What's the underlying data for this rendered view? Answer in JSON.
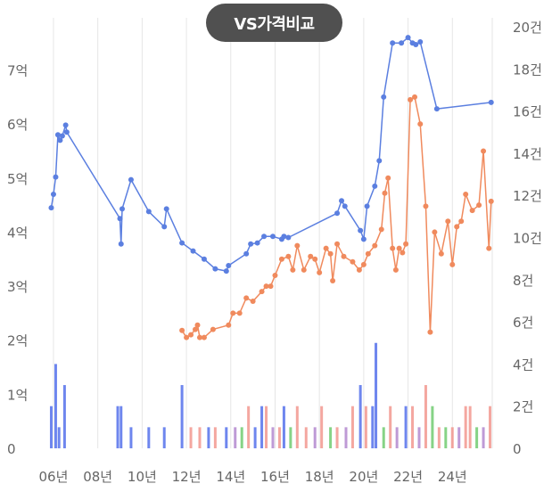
{
  "chart_data": {
    "type": "line",
    "title_button": "VS가격비교",
    "x_ticks": [
      "06년",
      "08년",
      "10년",
      "12년",
      "14년",
      "16년",
      "18년",
      "20년",
      "22년",
      "24년"
    ],
    "y_left_ticks": [
      "0",
      "1억",
      "2억",
      "3억",
      "4억",
      "5억",
      "6억",
      "7억"
    ],
    "y_left_range": [
      0,
      7.8
    ],
    "y_right_ticks": [
      "0",
      "2건",
      "4건",
      "6건",
      "8건",
      "10건",
      "12건",
      "14건",
      "16건",
      "18건",
      "20건"
    ],
    "y_right_range": [
      0,
      20
    ],
    "x_range": [
      2005.8,
      2025.8
    ],
    "grid": "vertical",
    "colors": {
      "blue_line": "#5b7fe0",
      "orange_line": "#f08a5d",
      "blue_bar": "#3d5ee8",
      "pink_bar": "#f08a80",
      "green_bar": "#5ec45e",
      "purple_bar": "#a878c8",
      "grid": "#e6e6e6",
      "tick_text": "#666666",
      "title_bg": "#505050"
    },
    "series": [
      {
        "color_key": "blue_line",
        "points": [
          [
            2005.9,
            4.45
          ],
          [
            2006.0,
            4.7
          ],
          [
            2006.1,
            5.02
          ],
          [
            2006.2,
            5.8
          ],
          [
            2006.3,
            5.7
          ],
          [
            2006.4,
            5.78
          ],
          [
            2006.55,
            5.98
          ],
          [
            2006.6,
            5.85
          ],
          [
            2009.0,
            4.25
          ],
          [
            2009.05,
            3.78
          ],
          [
            2009.1,
            4.43
          ],
          [
            2009.5,
            4.97
          ],
          [
            2010.3,
            4.38
          ],
          [
            2011.0,
            4.1
          ],
          [
            2011.1,
            4.43
          ],
          [
            2011.8,
            3.8
          ],
          [
            2012.3,
            3.65
          ],
          [
            2012.8,
            3.5
          ],
          [
            2013.3,
            3.32
          ],
          [
            2013.8,
            3.28
          ],
          [
            2013.9,
            3.38
          ],
          [
            2014.7,
            3.6
          ],
          [
            2014.9,
            3.78
          ],
          [
            2015.2,
            3.8
          ],
          [
            2015.5,
            3.92
          ],
          [
            2015.9,
            3.92
          ],
          [
            2016.3,
            3.87
          ],
          [
            2016.4,
            3.92
          ],
          [
            2016.6,
            3.9
          ],
          [
            2018.8,
            4.35
          ],
          [
            2019.0,
            4.58
          ],
          [
            2019.15,
            4.48
          ],
          [
            2019.85,
            4.03
          ],
          [
            2020.0,
            3.87
          ],
          [
            2020.15,
            4.48
          ],
          [
            2020.5,
            4.85
          ],
          [
            2020.7,
            5.32
          ],
          [
            2020.9,
            6.5
          ],
          [
            2021.3,
            7.5
          ],
          [
            2021.7,
            7.5
          ],
          [
            2022.0,
            7.6
          ],
          [
            2022.2,
            7.5
          ],
          [
            2022.35,
            7.47
          ],
          [
            2022.55,
            7.52
          ],
          [
            2023.3,
            6.28
          ],
          [
            2025.75,
            6.4
          ]
        ]
      },
      {
        "color_key": "orange_line",
        "points": [
          [
            2011.8,
            2.18
          ],
          [
            2012.0,
            2.05
          ],
          [
            2012.2,
            2.1
          ],
          [
            2012.4,
            2.2
          ],
          [
            2012.5,
            2.28
          ],
          [
            2012.6,
            2.05
          ],
          [
            2012.8,
            2.05
          ],
          [
            2013.2,
            2.2
          ],
          [
            2013.9,
            2.28
          ],
          [
            2014.1,
            2.5
          ],
          [
            2014.4,
            2.5
          ],
          [
            2014.7,
            2.78
          ],
          [
            2015.0,
            2.72
          ],
          [
            2015.4,
            2.9
          ],
          [
            2015.6,
            3.0
          ],
          [
            2015.8,
            3.0
          ],
          [
            2016.0,
            3.2
          ],
          [
            2016.3,
            3.5
          ],
          [
            2016.6,
            3.55
          ],
          [
            2016.8,
            3.3
          ],
          [
            2017.0,
            3.75
          ],
          [
            2017.3,
            3.3
          ],
          [
            2017.6,
            3.55
          ],
          [
            2017.8,
            3.5
          ],
          [
            2018.0,
            3.25
          ],
          [
            2018.3,
            3.7
          ],
          [
            2018.5,
            3.6
          ],
          [
            2018.6,
            3.1
          ],
          [
            2018.8,
            3.78
          ],
          [
            2019.1,
            3.55
          ],
          [
            2019.5,
            3.45
          ],
          [
            2019.8,
            3.3
          ],
          [
            2020.0,
            3.4
          ],
          [
            2020.2,
            3.6
          ],
          [
            2020.5,
            3.75
          ],
          [
            2020.8,
            4.05
          ],
          [
            2020.95,
            4.72
          ],
          [
            2021.1,
            5.0
          ],
          [
            2021.3,
            3.7
          ],
          [
            2021.45,
            3.3
          ],
          [
            2021.6,
            3.7
          ],
          [
            2021.75,
            3.62
          ],
          [
            2021.9,
            3.78
          ],
          [
            2022.1,
            6.45
          ],
          [
            2022.3,
            6.5
          ],
          [
            2022.55,
            6.0
          ],
          [
            2022.8,
            4.48
          ],
          [
            2023.0,
            2.15
          ],
          [
            2023.2,
            4.0
          ],
          [
            2023.5,
            3.6
          ],
          [
            2023.8,
            4.2
          ],
          [
            2024.0,
            3.4
          ],
          [
            2024.2,
            4.1
          ],
          [
            2024.4,
            4.2
          ],
          [
            2024.6,
            4.7
          ],
          [
            2024.9,
            4.4
          ],
          [
            2025.2,
            4.5
          ],
          [
            2025.4,
            5.5
          ],
          [
            2025.65,
            3.7
          ],
          [
            2025.75,
            4.57
          ]
        ]
      }
    ],
    "volume_bars": [
      {
        "x": 2005.9,
        "count": 2,
        "color_key": "blue_bar"
      },
      {
        "x": 2006.1,
        "count": 4,
        "color_key": "blue_bar"
      },
      {
        "x": 2006.25,
        "count": 1,
        "color_key": "blue_bar"
      },
      {
        "x": 2006.5,
        "count": 3,
        "color_key": "blue_bar"
      },
      {
        "x": 2008.9,
        "count": 2,
        "color_key": "blue_bar"
      },
      {
        "x": 2009.05,
        "count": 2,
        "color_key": "blue_bar"
      },
      {
        "x": 2009.5,
        "count": 1,
        "color_key": "blue_bar"
      },
      {
        "x": 2010.3,
        "count": 1,
        "color_key": "blue_bar"
      },
      {
        "x": 2011.0,
        "count": 1,
        "color_key": "blue_bar"
      },
      {
        "x": 2011.8,
        "count": 3,
        "color_key": "blue_bar"
      },
      {
        "x": 2012.2,
        "count": 1,
        "color_key": "pink_bar"
      },
      {
        "x": 2012.6,
        "count": 1,
        "color_key": "pink_bar"
      },
      {
        "x": 2013.0,
        "count": 1,
        "color_key": "blue_bar"
      },
      {
        "x": 2013.3,
        "count": 1,
        "color_key": "pink_bar"
      },
      {
        "x": 2013.8,
        "count": 1,
        "color_key": "blue_bar"
      },
      {
        "x": 2014.2,
        "count": 1,
        "color_key": "purple_bar"
      },
      {
        "x": 2014.5,
        "count": 1,
        "color_key": "green_bar"
      },
      {
        "x": 2014.8,
        "count": 2,
        "color_key": "pink_bar"
      },
      {
        "x": 2015.1,
        "count": 1,
        "color_key": "blue_bar"
      },
      {
        "x": 2015.4,
        "count": 2,
        "color_key": "blue_bar"
      },
      {
        "x": 2015.6,
        "count": 2,
        "color_key": "pink_bar"
      },
      {
        "x": 2015.9,
        "count": 1,
        "color_key": "purple_bar"
      },
      {
        "x": 2016.2,
        "count": 1,
        "color_key": "pink_bar"
      },
      {
        "x": 2016.4,
        "count": 2,
        "color_key": "blue_bar"
      },
      {
        "x": 2016.7,
        "count": 1,
        "color_key": "green_bar"
      },
      {
        "x": 2017.0,
        "count": 2,
        "color_key": "pink_bar"
      },
      {
        "x": 2017.4,
        "count": 1,
        "color_key": "pink_bar"
      },
      {
        "x": 2017.8,
        "count": 1,
        "color_key": "purple_bar"
      },
      {
        "x": 2018.1,
        "count": 2,
        "color_key": "pink_bar"
      },
      {
        "x": 2018.5,
        "count": 1,
        "color_key": "green_bar"
      },
      {
        "x": 2018.8,
        "count": 1,
        "color_key": "pink_bar"
      },
      {
        "x": 2019.2,
        "count": 1,
        "color_key": "purple_bar"
      },
      {
        "x": 2019.5,
        "count": 2,
        "color_key": "pink_bar"
      },
      {
        "x": 2019.85,
        "count": 3,
        "color_key": "blue_bar"
      },
      {
        "x": 2020.1,
        "count": 2,
        "color_key": "pink_bar"
      },
      {
        "x": 2020.4,
        "count": 2,
        "color_key": "blue_bar"
      },
      {
        "x": 2020.55,
        "count": 5,
        "color_key": "blue_bar"
      },
      {
        "x": 2020.9,
        "count": 1,
        "color_key": "green_bar"
      },
      {
        "x": 2021.2,
        "count": 2,
        "color_key": "pink_bar"
      },
      {
        "x": 2021.5,
        "count": 1,
        "color_key": "purple_bar"
      },
      {
        "x": 2021.9,
        "count": 2,
        "color_key": "blue_bar"
      },
      {
        "x": 2022.2,
        "count": 2,
        "color_key": "pink_bar"
      },
      {
        "x": 2022.5,
        "count": 1,
        "color_key": "purple_bar"
      },
      {
        "x": 2022.8,
        "count": 3,
        "color_key": "pink_bar"
      },
      {
        "x": 2023.1,
        "count": 2,
        "color_key": "green_bar"
      },
      {
        "x": 2023.4,
        "count": 1,
        "color_key": "pink_bar"
      },
      {
        "x": 2023.7,
        "count": 1,
        "color_key": "green_bar"
      },
      {
        "x": 2024.0,
        "count": 1,
        "color_key": "pink_bar"
      },
      {
        "x": 2024.3,
        "count": 1,
        "color_key": "purple_bar"
      },
      {
        "x": 2024.6,
        "count": 2,
        "color_key": "pink_bar"
      },
      {
        "x": 2024.8,
        "count": 2,
        "color_key": "pink_bar"
      },
      {
        "x": 2025.1,
        "count": 1,
        "color_key": "green_bar"
      },
      {
        "x": 2025.4,
        "count": 1,
        "color_key": "purple_bar"
      },
      {
        "x": 2025.7,
        "count": 2,
        "color_key": "pink_bar"
      }
    ]
  }
}
